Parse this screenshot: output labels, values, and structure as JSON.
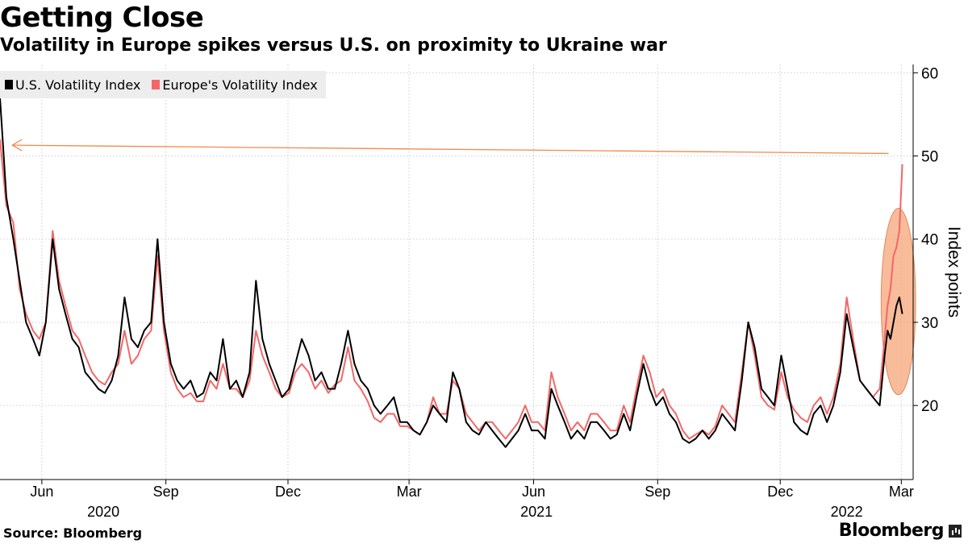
{
  "header": {
    "title": "Getting Close",
    "subtitle": "Volatility in Europe spikes versus U.S. on proximity to Ukraine war"
  },
  "legend": [
    {
      "label": "U.S. Volatility Index",
      "color": "#000000"
    },
    {
      "label": "Europe's Volatility Index",
      "color": "#f36767"
    }
  ],
  "footer": {
    "source": "Source: Bloomberg",
    "brand": "Bloomberg"
  },
  "chart_data": {
    "type": "line",
    "title": "Getting Close",
    "subtitle": "Volatility in Europe spikes versus U.S. on proximity to Ukraine war",
    "xlabel": "",
    "ylabel": "Index points",
    "xlim": [
      2020.33,
      2022.185
    ],
    "ylim": [
      11.1,
      61
    ],
    "y_ticks": [
      20,
      30,
      40,
      50,
      60
    ],
    "x_ticks": [
      {
        "label": "Jun",
        "t": 2020.415
      },
      {
        "label": "Sep",
        "t": 2020.667
      },
      {
        "label": "Dec",
        "t": 2020.915
      },
      {
        "label": "Mar",
        "t": 2021.161
      },
      {
        "label": "Jun",
        "t": 2021.414
      },
      {
        "label": "Sep",
        "t": 2021.666
      },
      {
        "label": "Dec",
        "t": 2021.915
      },
      {
        "label": "Mar",
        "t": 2022.161
      }
    ],
    "year_labels": [
      {
        "label": "2020",
        "t": 2020.54
      },
      {
        "label": "2021",
        "t": 2021.42
      },
      {
        "label": "2022",
        "t": 2022.05
      }
    ],
    "grid": true,
    "legend_position": "top-left",
    "annotations": [
      {
        "type": "arrow",
        "from": [
          2022.135,
          50.3
        ],
        "to": [
          2020.355,
          51.3
        ],
        "color": "#f08a4b"
      },
      {
        "type": "ellipse",
        "center": [
          2022.155,
          32.5
        ],
        "rx_years": 0.035,
        "ry_points": 11.2,
        "color": "#f5a57a"
      }
    ],
    "x": [
      2020.33,
      2020.343,
      2020.357,
      2020.37,
      2020.383,
      2020.397,
      2020.41,
      2020.423,
      2020.437,
      2020.45,
      2020.463,
      2020.477,
      2020.49,
      2020.503,
      2020.517,
      2020.53,
      2020.543,
      2020.557,
      2020.57,
      2020.583,
      2020.597,
      2020.61,
      2020.623,
      2020.637,
      2020.65,
      2020.663,
      2020.677,
      2020.69,
      2020.703,
      2020.717,
      2020.73,
      2020.743,
      2020.757,
      2020.77,
      2020.783,
      2020.797,
      2020.81,
      2020.823,
      2020.837,
      2020.85,
      2020.863,
      2020.877,
      2020.89,
      2020.903,
      2020.917,
      2020.93,
      2020.943,
      2020.957,
      2020.97,
      2020.983,
      2020.997,
      2021.01,
      2021.023,
      2021.037,
      2021.05,
      2021.063,
      2021.077,
      2021.09,
      2021.103,
      2021.117,
      2021.13,
      2021.143,
      2021.157,
      2021.17,
      2021.183,
      2021.197,
      2021.21,
      2021.223,
      2021.237,
      2021.25,
      2021.263,
      2021.277,
      2021.29,
      2021.303,
      2021.317,
      2021.33,
      2021.343,
      2021.357,
      2021.37,
      2021.383,
      2021.397,
      2021.41,
      2021.423,
      2021.437,
      2021.45,
      2021.463,
      2021.477,
      2021.49,
      2021.503,
      2021.517,
      2021.53,
      2021.543,
      2021.557,
      2021.57,
      2021.583,
      2021.597,
      2021.61,
      2021.623,
      2021.637,
      2021.65,
      2021.663,
      2021.677,
      2021.69,
      2021.703,
      2021.717,
      2021.73,
      2021.743,
      2021.757,
      2021.77,
      2021.783,
      2021.797,
      2021.81,
      2021.823,
      2021.837,
      2021.85,
      2021.863,
      2021.877,
      2021.89,
      2021.903,
      2021.917,
      2021.93,
      2021.943,
      2021.957,
      2021.97,
      2021.983,
      2021.997,
      2022.01,
      2022.023,
      2022.037,
      2022.05,
      2022.063,
      2022.077,
      2022.09,
      2022.103,
      2022.117,
      2022.127,
      2022.133,
      2022.139,
      2022.145,
      2022.151,
      2022.157,
      2022.163
    ],
    "series": [
      {
        "name": "U.S. Volatility Index",
        "color": "#000000",
        "values": [
          57,
          45,
          40,
          35,
          30,
          28,
          26,
          30,
          40,
          34,
          31,
          28,
          27,
          24,
          23,
          22,
          21.5,
          23,
          26,
          33,
          28,
          27,
          29,
          30,
          40,
          30,
          25,
          23,
          22,
          23,
          21,
          21.5,
          24,
          23,
          28,
          22,
          23,
          21,
          24,
          35,
          28,
          25,
          23,
          21,
          22,
          25,
          28,
          26,
          23,
          24,
          22,
          22,
          25,
          29,
          25,
          23,
          22,
          20,
          19,
          20,
          21,
          18,
          18,
          17,
          16.5,
          18,
          20,
          19,
          18,
          24,
          22,
          18,
          17,
          16.5,
          18,
          17,
          16,
          15,
          16,
          17,
          19,
          17,
          17,
          16,
          22,
          20,
          18,
          16,
          17,
          16,
          18,
          18,
          17,
          16,
          16.5,
          19,
          17,
          21,
          25,
          22,
          20,
          21,
          19,
          18,
          16,
          15.5,
          16,
          17,
          16,
          17,
          19,
          18,
          17,
          23,
          30,
          27,
          22,
          21,
          20,
          26,
          22,
          18,
          17,
          16.5,
          19,
          20,
          18,
          20,
          24,
          31,
          27,
          23,
          22,
          21,
          20,
          26,
          29,
          28,
          30,
          32,
          33,
          31
        ]
      },
      {
        "name": "Europe's Volatility Index",
        "color": "#f36767",
        "values": [
          52,
          44,
          42,
          34,
          31,
          29,
          28,
          30,
          41,
          35,
          32,
          29,
          28,
          26,
          24,
          23,
          22.5,
          24,
          25,
          29,
          25,
          26,
          28,
          29,
          38,
          29,
          24,
          22,
          21,
          21.5,
          20.5,
          20.5,
          23,
          22,
          25,
          22,
          22,
          21,
          23,
          29,
          26,
          24,
          22,
          21,
          21.5,
          24,
          25,
          24,
          22,
          23,
          21.5,
          22.5,
          23,
          27,
          23,
          22,
          20.5,
          18.5,
          18,
          19,
          19,
          17.5,
          17.5,
          17,
          16.5,
          18,
          21,
          19,
          19,
          23,
          22,
          19,
          18,
          17,
          18,
          18,
          17,
          16,
          17,
          18,
          20,
          18,
          18,
          17,
          24,
          21,
          19,
          17,
          18,
          17,
          19,
          19,
          18,
          17,
          17,
          20,
          18,
          22,
          26,
          24,
          21,
          22,
          20,
          19,
          17,
          16,
          16.5,
          17,
          16.5,
          17.5,
          20,
          19,
          18,
          24,
          30,
          26,
          21,
          20,
          19.5,
          24,
          21,
          19.5,
          18.5,
          18,
          20,
          21,
          19,
          21,
          25,
          33,
          28,
          23,
          22,
          21,
          22,
          28,
          32,
          34,
          38,
          39,
          41,
          49
        ]
      }
    ]
  }
}
